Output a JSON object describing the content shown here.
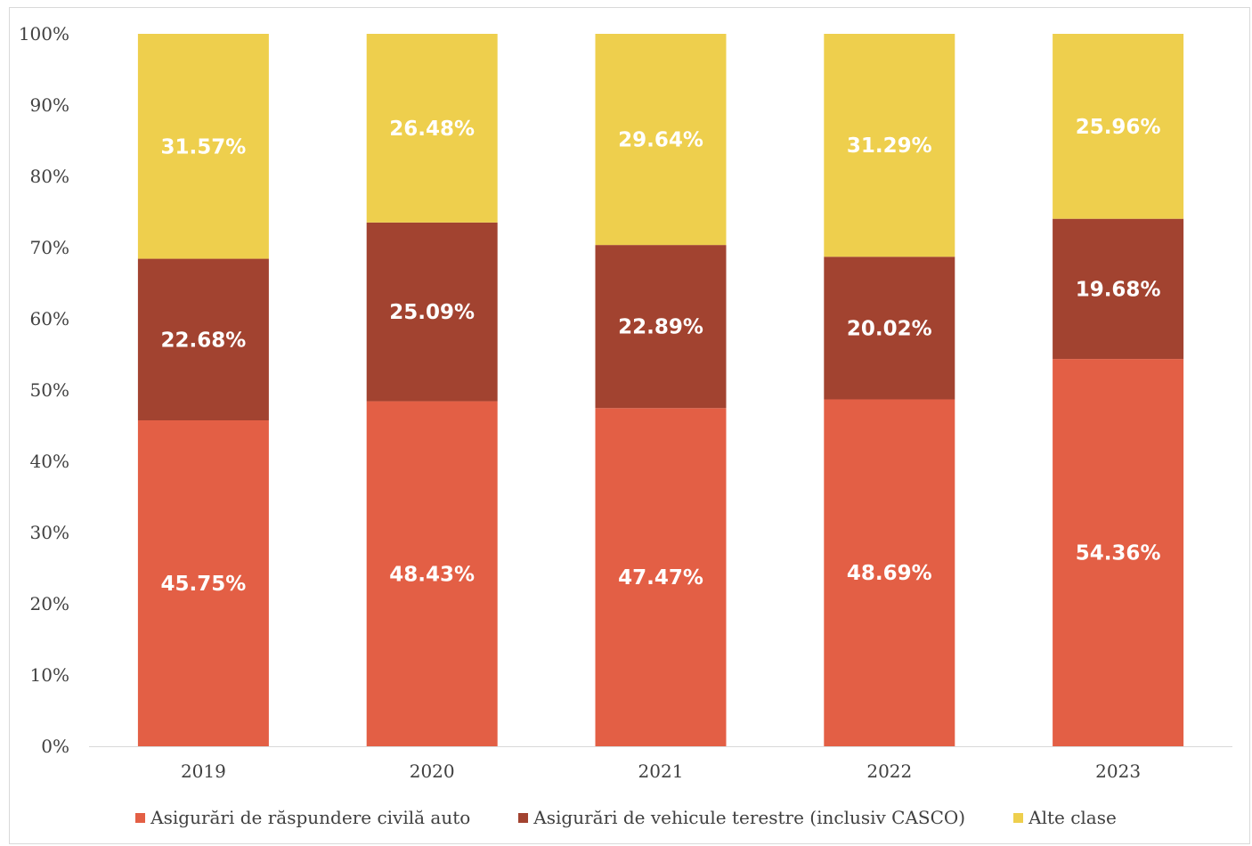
{
  "chart_data": {
    "type": "bar",
    "stacked": true,
    "categories": [
      "2019",
      "2020",
      "2021",
      "2022",
      "2023"
    ],
    "series": [
      {
        "name": "Asigurări de răspundere civilă auto",
        "color": "#e35f45",
        "values": [
          45.75,
          48.43,
          47.47,
          48.69,
          54.36
        ],
        "labels": [
          "45.75%",
          "48.43%",
          "47.47%",
          "48.69%",
          "54.36%"
        ]
      },
      {
        "name": "Asigurări de vehicule terestre (inclusiv CASCO)",
        "color": "#a24330",
        "values": [
          22.68,
          25.09,
          22.89,
          20.02,
          19.68
        ],
        "labels": [
          "22.68%",
          "25.09%",
          "22.89%",
          "20.02%",
          "19.68%"
        ]
      },
      {
        "name": "Alte clase",
        "color": "#eecf4d",
        "values": [
          31.57,
          26.48,
          29.64,
          31.29,
          25.96
        ],
        "labels": [
          "31.57%",
          "26.48%",
          "29.64%",
          "31.29%",
          "25.96%"
        ]
      }
    ],
    "y_ticks": [
      "0%",
      "10%",
      "20%",
      "30%",
      "40%",
      "50%",
      "60%",
      "70%",
      "80%",
      "90%",
      "100%"
    ],
    "ylim": [
      0,
      100
    ],
    "grid": false,
    "legend_position": "bottom"
  }
}
